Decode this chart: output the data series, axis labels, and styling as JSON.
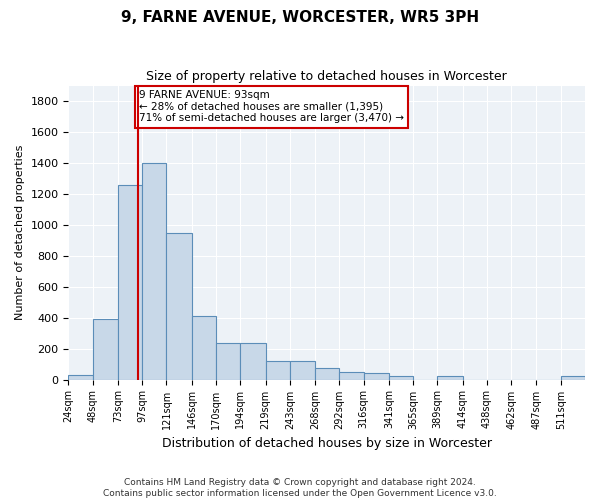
{
  "title": "9, FARNE AVENUE, WORCESTER, WR5 3PH",
  "subtitle": "Size of property relative to detached houses in Worcester",
  "xlabel": "Distribution of detached houses by size in Worcester",
  "ylabel": "Number of detached properties",
  "bin_edges": [
    24,
    48,
    73,
    97,
    121,
    146,
    170,
    194,
    219,
    243,
    268,
    292,
    316,
    341,
    365,
    389,
    414,
    438,
    462,
    487,
    511,
    535
  ],
  "bar_heights": [
    30,
    390,
    1260,
    1400,
    950,
    410,
    235,
    235,
    120,
    120,
    75,
    50,
    45,
    20,
    0,
    20,
    0,
    0,
    0,
    0,
    20
  ],
  "tick_labels": [
    "24sqm",
    "48sqm",
    "73sqm",
    "97sqm",
    "121sqm",
    "146sqm",
    "170sqm",
    "194sqm",
    "219sqm",
    "243sqm",
    "268sqm",
    "292sqm",
    "316sqm",
    "341sqm",
    "365sqm",
    "389sqm",
    "414sqm",
    "438sqm",
    "462sqm",
    "487sqm",
    "511sqm"
  ],
  "bar_color": "#c8d8e8",
  "bar_edge_color": "#5b8db8",
  "property_size": 93,
  "red_line_color": "#cc0000",
  "annotation_text": "9 FARNE AVENUE: 93sqm\n← 28% of detached houses are smaller (1,395)\n71% of semi-detached houses are larger (3,470) →",
  "annotation_box_color": "#ffffff",
  "annotation_box_edge": "#cc0000",
  "ylim": [
    0,
    1900
  ],
  "yticks": [
    0,
    200,
    400,
    600,
    800,
    1000,
    1200,
    1400,
    1600,
    1800
  ],
  "bg_color": "#edf2f7",
  "footer_line1": "Contains HM Land Registry data © Crown copyright and database right 2024.",
  "footer_line2": "Contains public sector information licensed under the Open Government Licence v3.0."
}
